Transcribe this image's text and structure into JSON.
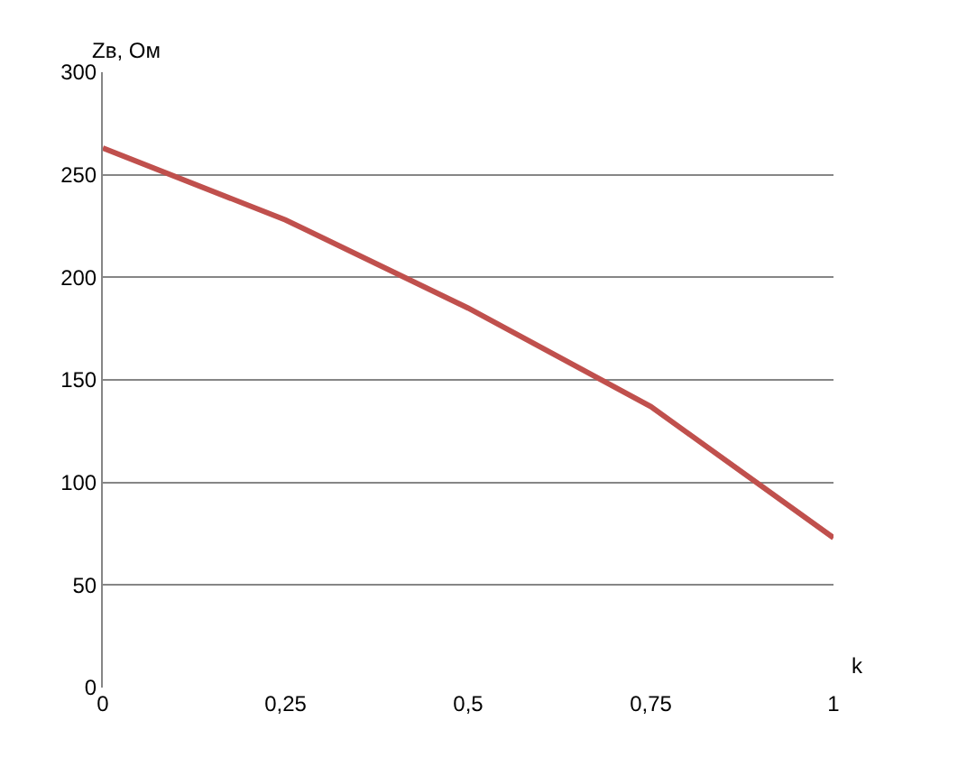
{
  "chart_data": {
    "type": "line",
    "ylabel": "Zв, Ом",
    "xlabel": "k",
    "x": [
      0,
      0.25,
      0.5,
      0.75,
      1
    ],
    "series": [
      {
        "color": "#c0504d",
        "values": [
          263,
          228,
          185,
          137,
          73
        ]
      }
    ],
    "xlim": [
      0,
      1
    ],
    "xticks": [
      0,
      {
        "value": 0.25,
        "label": "0,25"
      },
      {
        "value": 0.5,
        "label": "0,5"
      },
      {
        "value": 0.75,
        "label": "0,75"
      },
      1
    ],
    "ylim": [
      0,
      300
    ],
    "yticks": [
      0,
      50,
      100,
      150,
      200,
      250,
      300
    ],
    "grid": "y",
    "legend": false,
    "marker": "none",
    "line_style": "solid"
  }
}
